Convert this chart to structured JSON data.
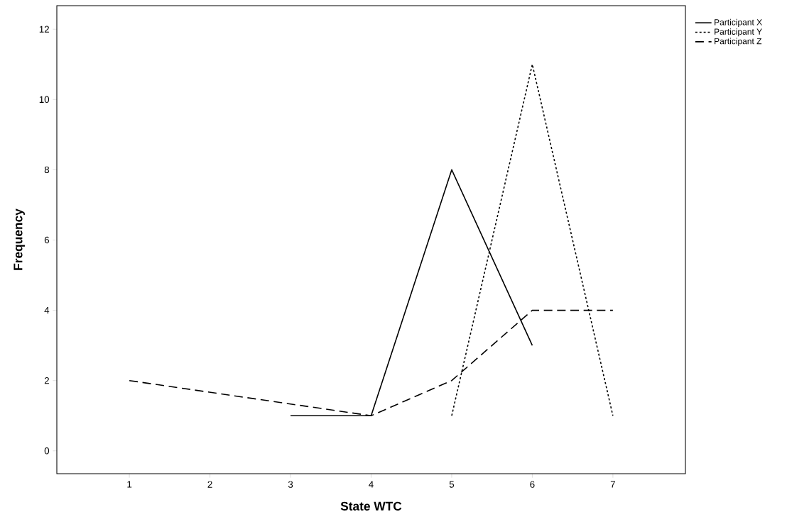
{
  "chart_data": {
    "type": "line",
    "xlabel": "State WTC",
    "ylabel": "Frequency",
    "xlim": [
      0.1,
      7.9
    ],
    "ylim": [
      -0.65,
      12.67
    ],
    "xticks": [
      1,
      2,
      3,
      4,
      5,
      6,
      7
    ],
    "yticks": [
      0,
      2,
      4,
      6,
      8,
      10,
      12
    ],
    "grid": false,
    "legend": "top right",
    "marker": "none",
    "series": [
      {
        "name": "Participant X",
        "color": "#000000",
        "line_style": "solid",
        "x": [
          3,
          4,
          5,
          6
        ],
        "values": [
          1,
          1,
          8,
          3
        ]
      },
      {
        "name": "Participant Y",
        "color": "#000000",
        "line_style": "dotted",
        "x": [
          5,
          6,
          7
        ],
        "values": [
          1,
          11,
          1
        ]
      },
      {
        "name": "Participant Z",
        "color": "#000000",
        "line_style": "dashed",
        "x": [
          1,
          4,
          5,
          6,
          7
        ],
        "values": [
          2,
          1,
          2,
          4,
          4
        ]
      }
    ]
  }
}
